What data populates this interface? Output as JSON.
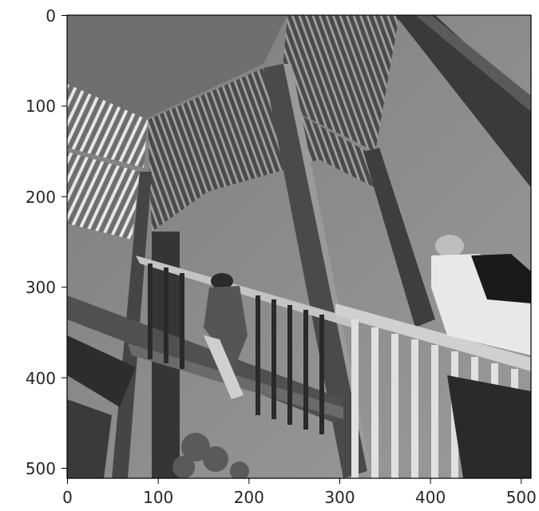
{
  "figure": {
    "image_content": "grayscale photograph: low-angle view of an outdoor staircase with railings; two people climbing the stairs",
    "x_ticks": [
      "0",
      "100",
      "200",
      "300",
      "400",
      "500"
    ],
    "y_ticks": [
      "0",
      "100",
      "200",
      "300",
      "400",
      "500"
    ],
    "xlim": [
      0,
      511
    ],
    "ylim": [
      0,
      511
    ],
    "colormap": "gray"
  },
  "colors": {
    "axis": "#000000",
    "tick_text": "#262626",
    "sky": "#8a8a8a",
    "steel": "#3a3a3a",
    "light": "#d9d9d9"
  }
}
